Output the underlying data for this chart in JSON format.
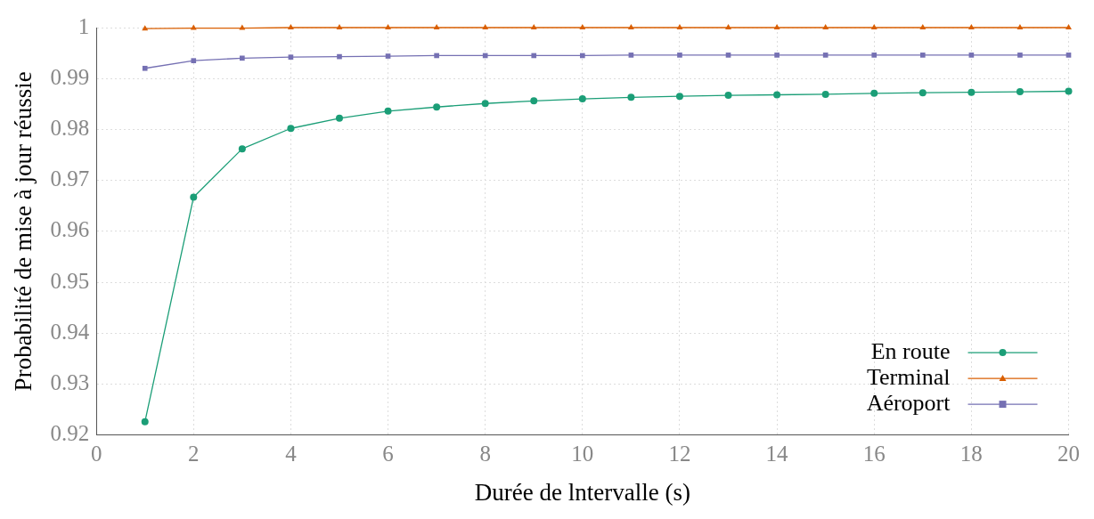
{
  "chart_data": {
    "type": "line",
    "xlabel": "Durée de lntervalle (s)",
    "ylabel": "Probabilité de mise à jour réussie",
    "x": [
      1,
      2,
      3,
      4,
      5,
      6,
      7,
      8,
      9,
      10,
      11,
      12,
      13,
      14,
      15,
      16,
      17,
      18,
      19,
      20
    ],
    "series": [
      {
        "name": "En route",
        "color": "#1b9e77",
        "marker": "circle",
        "values": [
          0.9226,
          0.9667,
          0.9762,
          0.9802,
          0.9822,
          0.9836,
          0.9844,
          0.9851,
          0.9856,
          0.986,
          0.9863,
          0.9865,
          0.9867,
          0.9868,
          0.9869,
          0.9871,
          0.9872,
          0.9873,
          0.9874,
          0.9875
        ]
      },
      {
        "name": "Terminal",
        "color": "#d95f02",
        "marker": "triangle",
        "values": [
          0.9998,
          0.9999,
          0.9999,
          1,
          1,
          1,
          1,
          1,
          1,
          1,
          1,
          1,
          1,
          1,
          1,
          1,
          1,
          1,
          1,
          1
        ]
      },
      {
        "name": "Aéroport",
        "color": "#7570b3",
        "marker": "square",
        "values": [
          0.992,
          0.9935,
          0.994,
          0.9942,
          0.9943,
          0.9944,
          0.9945,
          0.9945,
          0.9945,
          0.9945,
          0.9946,
          0.9946,
          0.9946,
          0.9946,
          0.9946,
          0.9946,
          0.9946,
          0.9946,
          0.9946,
          0.9946
        ]
      }
    ],
    "xlim": [
      0,
      20
    ],
    "xticks": [
      0,
      2,
      4,
      6,
      8,
      10,
      12,
      14,
      16,
      18,
      20
    ],
    "ylim": [
      0.92,
      1
    ],
    "yticks": [
      0.92,
      0.93,
      0.94,
      0.95,
      0.96,
      0.97,
      0.98,
      0.99,
      1
    ],
    "grid": true,
    "legend": "bottom right",
    "line_style": "solid"
  }
}
